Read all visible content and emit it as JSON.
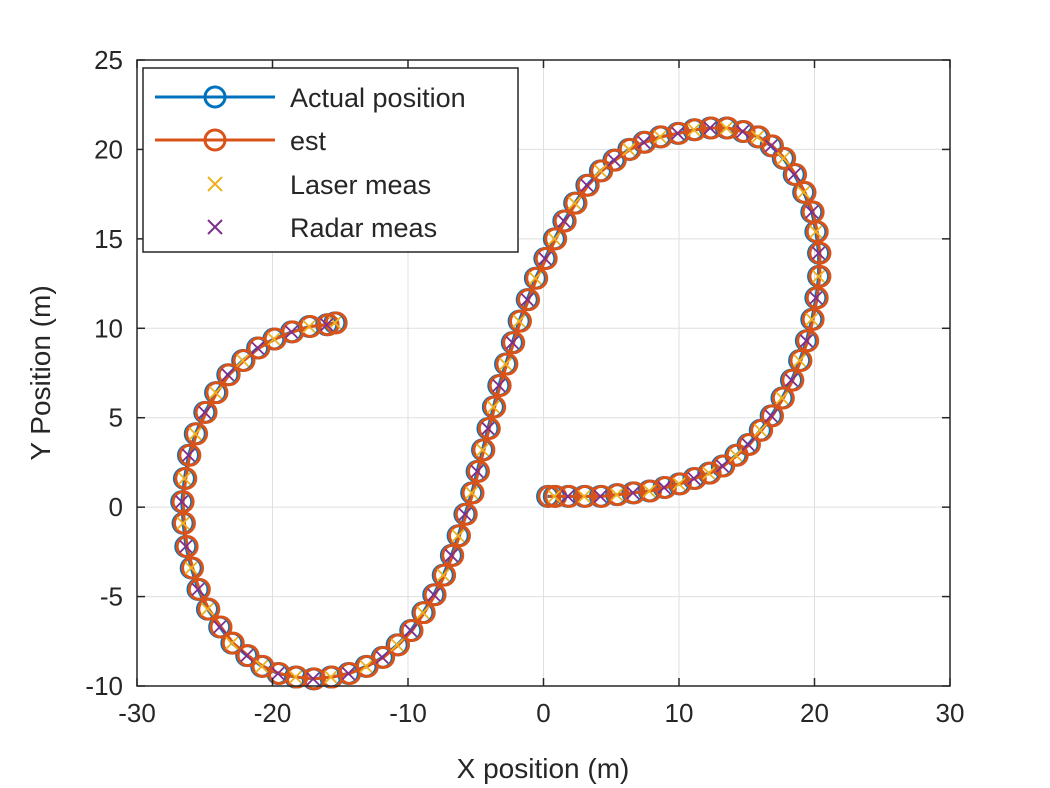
{
  "chart_data": {
    "type": "line",
    "title": "",
    "xlabel": "X position (m)",
    "ylabel": "Y Position (m)",
    "xlim": [
      -30,
      30
    ],
    "ylim": [
      -10,
      25
    ],
    "xticks": [
      "-30",
      "-20",
      "-10",
      "0",
      "10",
      "20",
      "30"
    ],
    "yticks": [
      "-10",
      "-5",
      "0",
      "5",
      "10",
      "15",
      "20",
      "25"
    ],
    "grid": true,
    "legend_position": "top-left",
    "series": [
      {
        "name": "Actual position",
        "color": "#0072BD",
        "marker": "circle",
        "line": true,
        "points": [
          [
            0.3,
            0.6
          ],
          [
            0.8,
            0.6
          ],
          [
            1.8,
            0.6
          ],
          [
            3.0,
            0.6
          ],
          [
            4.2,
            0.6
          ],
          [
            5.4,
            0.7
          ],
          [
            6.6,
            0.8
          ],
          [
            7.8,
            0.9
          ],
          [
            8.9,
            1.1
          ],
          [
            10.0,
            1.3
          ],
          [
            11.1,
            1.6
          ],
          [
            12.2,
            1.9
          ],
          [
            13.2,
            2.3
          ],
          [
            14.2,
            2.9
          ],
          [
            15.1,
            3.5
          ],
          [
            16.0,
            4.3
          ],
          [
            16.8,
            5.1
          ],
          [
            17.6,
            6.1
          ],
          [
            18.3,
            7.1
          ],
          [
            18.9,
            8.2
          ],
          [
            19.4,
            9.3
          ],
          [
            19.8,
            10.5
          ],
          [
            20.1,
            11.7
          ],
          [
            20.3,
            12.9
          ],
          [
            20.3,
            14.2
          ],
          [
            20.1,
            15.4
          ],
          [
            19.8,
            16.5
          ],
          [
            19.2,
            17.6
          ],
          [
            18.5,
            18.6
          ],
          [
            17.7,
            19.5
          ],
          [
            16.8,
            20.2
          ],
          [
            15.8,
            20.7
          ],
          [
            14.7,
            21.0
          ],
          [
            13.5,
            21.2
          ],
          [
            12.3,
            21.2
          ],
          [
            11.1,
            21.1
          ],
          [
            9.9,
            20.9
          ],
          [
            8.6,
            20.7
          ],
          [
            7.4,
            20.4
          ],
          [
            6.3,
            20.0
          ],
          [
            5.2,
            19.4
          ],
          [
            4.2,
            18.8
          ],
          [
            3.2,
            18.0
          ],
          [
            2.3,
            17.0
          ],
          [
            1.5,
            16.0
          ],
          [
            0.8,
            15.0
          ],
          [
            0.1,
            13.9
          ],
          [
            -0.6,
            12.8
          ],
          [
            -1.2,
            11.6
          ],
          [
            -1.8,
            10.4
          ],
          [
            -2.3,
            9.2
          ],
          [
            -2.8,
            8.0
          ],
          [
            -3.3,
            6.8
          ],
          [
            -3.7,
            5.6
          ],
          [
            -4.1,
            4.4
          ],
          [
            -4.5,
            3.2
          ],
          [
            -4.9,
            2.0
          ],
          [
            -5.3,
            0.8
          ],
          [
            -5.8,
            -0.4
          ],
          [
            -6.3,
            -1.6
          ],
          [
            -6.8,
            -2.7
          ],
          [
            -7.4,
            -3.8
          ],
          [
            -8.1,
            -4.9
          ],
          [
            -8.9,
            -5.9
          ],
          [
            -9.8,
            -6.9
          ],
          [
            -10.8,
            -7.7
          ],
          [
            -11.9,
            -8.4
          ],
          [
            -13.1,
            -8.9
          ],
          [
            -14.4,
            -9.3
          ],
          [
            -15.7,
            -9.5
          ],
          [
            -17.0,
            -9.6
          ],
          [
            -18.3,
            -9.5
          ],
          [
            -19.6,
            -9.3
          ],
          [
            -20.8,
            -8.9
          ],
          [
            -21.9,
            -8.3
          ],
          [
            -23.0,
            -7.6
          ],
          [
            -23.9,
            -6.7
          ],
          [
            -24.8,
            -5.7
          ],
          [
            -25.5,
            -4.6
          ],
          [
            -26.0,
            -3.4
          ],
          [
            -26.4,
            -2.2
          ],
          [
            -26.6,
            -0.9
          ],
          [
            -26.7,
            0.3
          ],
          [
            -26.5,
            1.6
          ],
          [
            -26.2,
            2.9
          ],
          [
            -25.7,
            4.1
          ],
          [
            -25.0,
            5.3
          ],
          [
            -24.2,
            6.4
          ],
          [
            -23.3,
            7.4
          ],
          [
            -22.2,
            8.2
          ],
          [
            -21.1,
            8.9
          ],
          [
            -19.9,
            9.4
          ],
          [
            -18.6,
            9.8
          ],
          [
            -17.3,
            10.1
          ],
          [
            -16.0,
            10.2
          ],
          [
            -15.4,
            10.3
          ]
        ]
      },
      {
        "name": "est",
        "color": "#D95319",
        "marker": "circle",
        "line": true,
        "points": [
          [
            0.4,
            0.6
          ],
          [
            0.9,
            0.6
          ],
          [
            1.9,
            0.6
          ],
          [
            3.1,
            0.6
          ],
          [
            4.3,
            0.6
          ],
          [
            5.5,
            0.7
          ],
          [
            6.7,
            0.8
          ],
          [
            7.9,
            0.9
          ],
          [
            9.0,
            1.1
          ],
          [
            10.1,
            1.3
          ],
          [
            11.2,
            1.6
          ],
          [
            12.3,
            1.9
          ],
          [
            13.3,
            2.3
          ],
          [
            14.3,
            2.9
          ],
          [
            15.2,
            3.5
          ],
          [
            16.1,
            4.3
          ],
          [
            16.9,
            5.1
          ],
          [
            17.7,
            6.1
          ],
          [
            18.4,
            7.1
          ],
          [
            19.0,
            8.2
          ],
          [
            19.5,
            9.3
          ],
          [
            19.9,
            10.5
          ],
          [
            20.2,
            11.7
          ],
          [
            20.4,
            12.9
          ],
          [
            20.4,
            14.2
          ],
          [
            20.2,
            15.4
          ],
          [
            19.9,
            16.5
          ],
          [
            19.3,
            17.6
          ],
          [
            18.6,
            18.6
          ],
          [
            17.8,
            19.5
          ],
          [
            16.9,
            20.2
          ],
          [
            15.9,
            20.7
          ],
          [
            14.8,
            21.0
          ],
          [
            13.6,
            21.2
          ],
          [
            12.4,
            21.2
          ],
          [
            11.2,
            21.1
          ],
          [
            10.0,
            20.9
          ],
          [
            8.7,
            20.7
          ],
          [
            7.5,
            20.4
          ],
          [
            6.4,
            20.0
          ],
          [
            5.3,
            19.4
          ],
          [
            4.3,
            18.8
          ],
          [
            3.3,
            18.0
          ],
          [
            2.4,
            17.0
          ],
          [
            1.6,
            16.0
          ],
          [
            0.9,
            15.0
          ],
          [
            0.2,
            13.9
          ],
          [
            -0.5,
            12.8
          ],
          [
            -1.1,
            11.6
          ],
          [
            -1.7,
            10.4
          ],
          [
            -2.2,
            9.2
          ],
          [
            -2.7,
            8.0
          ],
          [
            -3.2,
            6.8
          ],
          [
            -3.6,
            5.6
          ],
          [
            -4.0,
            4.4
          ],
          [
            -4.4,
            3.2
          ],
          [
            -4.8,
            2.0
          ],
          [
            -5.2,
            0.8
          ],
          [
            -5.7,
            -0.4
          ],
          [
            -6.2,
            -1.6
          ],
          [
            -6.7,
            -2.7
          ],
          [
            -7.3,
            -3.8
          ],
          [
            -8.0,
            -4.9
          ],
          [
            -8.8,
            -5.9
          ],
          [
            -9.7,
            -6.9
          ],
          [
            -10.7,
            -7.7
          ],
          [
            -11.8,
            -8.4
          ],
          [
            -13.0,
            -8.9
          ],
          [
            -14.3,
            -9.3
          ],
          [
            -15.6,
            -9.5
          ],
          [
            -16.9,
            -9.6
          ],
          [
            -18.2,
            -9.5
          ],
          [
            -19.5,
            -9.3
          ],
          [
            -20.7,
            -8.9
          ],
          [
            -21.8,
            -8.3
          ],
          [
            -22.9,
            -7.6
          ],
          [
            -23.8,
            -6.7
          ],
          [
            -24.7,
            -5.7
          ],
          [
            -25.4,
            -4.6
          ],
          [
            -25.9,
            -3.4
          ],
          [
            -26.3,
            -2.2
          ],
          [
            -26.5,
            -0.9
          ],
          [
            -26.6,
            0.3
          ],
          [
            -26.4,
            1.6
          ],
          [
            -26.1,
            2.9
          ],
          [
            -25.6,
            4.1
          ],
          [
            -24.9,
            5.3
          ],
          [
            -24.1,
            6.4
          ],
          [
            -23.2,
            7.4
          ],
          [
            -22.1,
            8.2
          ],
          [
            -21.0,
            8.9
          ],
          [
            -19.8,
            9.4
          ],
          [
            -18.5,
            9.8
          ],
          [
            -17.2,
            10.1
          ],
          [
            -15.9,
            10.2
          ],
          [
            -15.3,
            10.3
          ]
        ]
      },
      {
        "name": "Laser meas",
        "color": "#EDB120",
        "marker": "x",
        "line": false,
        "points": [
          [
            0.8,
            0.6
          ],
          [
            3.0,
            0.6
          ],
          [
            5.4,
            0.7
          ],
          [
            7.8,
            0.9
          ],
          [
            10.0,
            1.3
          ],
          [
            12.2,
            1.9
          ],
          [
            14.2,
            2.9
          ],
          [
            16.0,
            4.3
          ],
          [
            17.6,
            6.1
          ],
          [
            18.9,
            8.2
          ],
          [
            19.8,
            10.5
          ],
          [
            20.3,
            12.9
          ],
          [
            20.1,
            15.4
          ],
          [
            19.2,
            17.6
          ],
          [
            17.7,
            19.5
          ],
          [
            15.8,
            20.7
          ],
          [
            13.5,
            21.2
          ],
          [
            11.1,
            21.1
          ],
          [
            8.6,
            20.7
          ],
          [
            6.3,
            20.0
          ],
          [
            4.2,
            18.8
          ],
          [
            2.3,
            17.0
          ],
          [
            0.8,
            15.0
          ],
          [
            -0.6,
            12.8
          ],
          [
            -1.8,
            10.4
          ],
          [
            -2.8,
            8.0
          ],
          [
            -3.7,
            5.6
          ],
          [
            -4.5,
            3.2
          ],
          [
            -5.3,
            0.8
          ],
          [
            -6.3,
            -1.6
          ],
          [
            -7.4,
            -3.8
          ],
          [
            -8.9,
            -5.9
          ],
          [
            -10.8,
            -7.7
          ],
          [
            -13.1,
            -8.9
          ],
          [
            -15.7,
            -9.5
          ],
          [
            -18.3,
            -9.5
          ],
          [
            -20.8,
            -8.9
          ],
          [
            -23.0,
            -7.6
          ],
          [
            -24.8,
            -5.7
          ],
          [
            -26.0,
            -3.4
          ],
          [
            -26.6,
            -0.9
          ],
          [
            -26.5,
            1.6
          ],
          [
            -25.7,
            4.1
          ],
          [
            -24.2,
            6.4
          ],
          [
            -22.2,
            8.2
          ],
          [
            -19.9,
            9.4
          ],
          [
            -17.3,
            10.1
          ],
          [
            -15.4,
            10.3
          ]
        ]
      },
      {
        "name": "Radar meas",
        "color": "#7E2F8E",
        "marker": "x",
        "line": false,
        "points": [
          [
            1.8,
            0.6
          ],
          [
            4.2,
            0.6
          ],
          [
            6.6,
            0.8
          ],
          [
            8.9,
            1.1
          ],
          [
            11.1,
            1.6
          ],
          [
            13.2,
            2.3
          ],
          [
            15.1,
            3.5
          ],
          [
            16.8,
            5.1
          ],
          [
            18.3,
            7.1
          ],
          [
            19.4,
            9.3
          ],
          [
            20.1,
            11.7
          ],
          [
            20.3,
            14.2
          ],
          [
            19.8,
            16.5
          ],
          [
            18.5,
            18.6
          ],
          [
            16.8,
            20.2
          ],
          [
            14.7,
            21.0
          ],
          [
            12.3,
            21.2
          ],
          [
            9.9,
            20.9
          ],
          [
            7.4,
            20.4
          ],
          [
            5.2,
            19.4
          ],
          [
            3.2,
            18.0
          ],
          [
            1.5,
            16.0
          ],
          [
            0.1,
            13.9
          ],
          [
            -1.2,
            11.6
          ],
          [
            -2.3,
            9.2
          ],
          [
            -3.3,
            6.8
          ],
          [
            -4.1,
            4.4
          ],
          [
            -4.9,
            2.0
          ],
          [
            -5.8,
            -0.4
          ],
          [
            -6.8,
            -2.7
          ],
          [
            -8.1,
            -4.9
          ],
          [
            -9.8,
            -6.9
          ],
          [
            -11.9,
            -8.4
          ],
          [
            -14.4,
            -9.3
          ],
          [
            -17.0,
            -9.6
          ],
          [
            -19.6,
            -9.3
          ],
          [
            -21.9,
            -8.3
          ],
          [
            -23.9,
            -6.7
          ],
          [
            -25.5,
            -4.6
          ],
          [
            -26.4,
            -2.2
          ],
          [
            -26.7,
            0.3
          ],
          [
            -26.2,
            2.9
          ],
          [
            -25.0,
            5.3
          ],
          [
            -23.3,
            7.4
          ],
          [
            -21.1,
            8.9
          ],
          [
            -18.6,
            9.8
          ],
          [
            -16.0,
            10.2
          ]
        ]
      }
    ]
  }
}
